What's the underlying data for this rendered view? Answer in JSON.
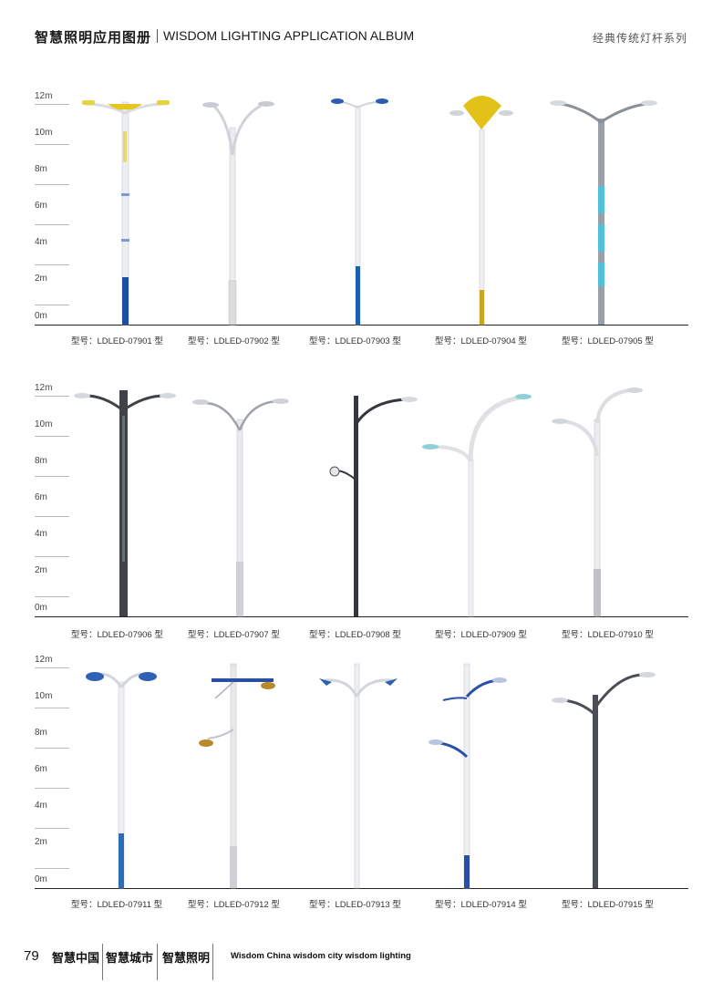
{
  "header": {
    "cn_title": "智慧照明应用图册",
    "en_title": "WISDOM LIGHTING APPLICATION ALBUM",
    "series": "经典传统灯杆系列"
  },
  "axis_labels": [
    "12m",
    "10m",
    "8m",
    "6m",
    "4m",
    "2m",
    "0m"
  ],
  "panels": [
    {
      "models": [
        "型号：LDLED-07901 型",
        "型号：LDLED-07902 型",
        "型号：LDLED-07903 型",
        "型号：LDLED-07904 型",
        "型号：LDLED-07905 型"
      ]
    },
    {
      "models": [
        "型号：LDLED-07906 型",
        "型号：LDLED-07907 型",
        "型号：LDLED-07908 型",
        "型号：LDLED-07909 型",
        "型号：LDLED-07910 型"
      ]
    },
    {
      "models": [
        "型号：LDLED-07911 型",
        "型号：LDLED-07912 型",
        "型号：LDLED-07913 型",
        "型号：LDLED-07914 型",
        "型号：LDLED-07915 型"
      ]
    }
  ],
  "footer": {
    "page_number": "79",
    "tags": [
      "智慧中国",
      "智慧城市",
      "智慧照明"
    ],
    "slogan": "Wisdom China  wisdom city  wisdom lighting"
  }
}
